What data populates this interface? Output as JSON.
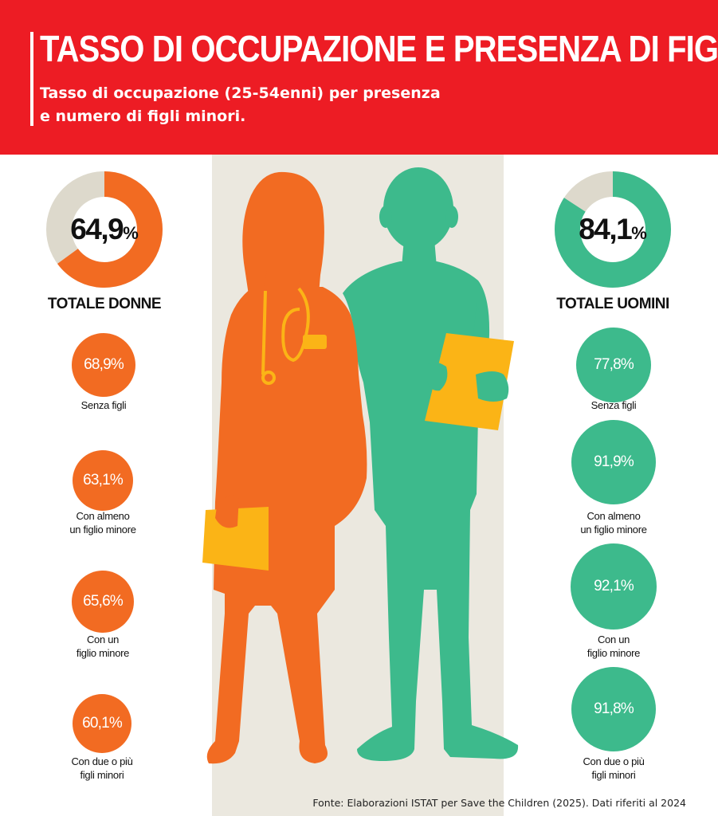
{
  "header": {
    "title": "TASSO DI OCCUPAZIONE E PRESENZA DI FIGLI",
    "subtitle_line1": "Tasso di occupazione (25-54enni) per presenza",
    "subtitle_line2": "e numero di figli minori."
  },
  "colors": {
    "header_red": "#ed1c24",
    "women_orange": "#f26b22",
    "men_green": "#3dba8c",
    "donut_remainder": "#ddd9cc",
    "folder_yellow": "#fbb416",
    "band_beige": "#ebe8df"
  },
  "chart_data": {
    "type": "donut-and-bubbles",
    "unit": "%",
    "categories": [
      "Senza figli",
      "Con almeno un figlio minore",
      "Con un figlio minore",
      "Con due o più figli minori"
    ],
    "women": {
      "total_value": 64.9,
      "total_label": "64,9",
      "total_name": "TOTALE DONNE",
      "values": [
        68.9,
        63.1,
        65.6,
        60.1
      ],
      "value_labels": [
        "68,9%",
        "63,1%",
        "65,6%",
        "60,1%"
      ]
    },
    "men": {
      "total_value": 84.1,
      "total_label": "84,1",
      "total_name": "TOTALE UOMINI",
      "values": [
        77.8,
        91.9,
        92.1,
        91.8
      ],
      "value_labels": [
        "77,8%",
        "91,9%",
        "92,1%",
        "91,8%"
      ]
    },
    "category_labels": [
      {
        "line1": "Senza figli",
        "line2": ""
      },
      {
        "line1": "Con almeno",
        "line2": "un figlio minore"
      },
      {
        "line1": "Con un",
        "line2": "figlio minore"
      },
      {
        "line1": "Con due o più",
        "line2": "figli minori"
      }
    ],
    "percent_sign": "%"
  },
  "source": "Fonte: Elaborazioni ISTAT per Save the Children (2025). Dati riferiti al 2024"
}
